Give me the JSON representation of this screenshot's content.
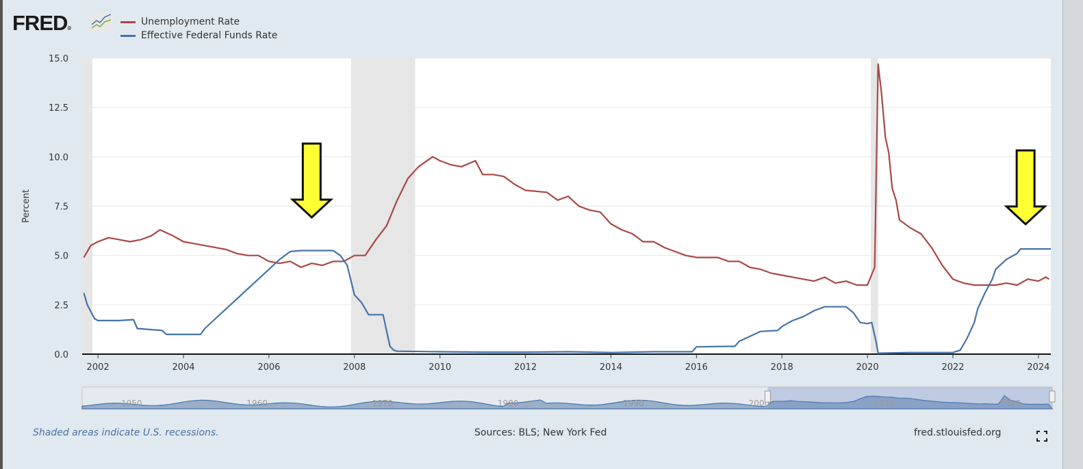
{
  "logo": {
    "text": "FRED"
  },
  "legend": [
    {
      "label": "Unemployment Rate",
      "color": "#aa4643"
    },
    {
      "label": "Effective Federal Funds Rate",
      "color": "#4572a7"
    }
  ],
  "footer": {
    "recession_note": "Shaded areas indicate U.S. recessions.",
    "sources": "Sources: BLS; New York Fed",
    "site": "fred.stlouisfed.org"
  },
  "annotations": [
    {
      "type": "arrow",
      "color": "#ffff33",
      "points_at": "Effective Federal Funds Rate",
      "x": 2007.0
    },
    {
      "type": "arrow",
      "color": "#ffff33",
      "points_at": "Effective Federal Funds Rate",
      "x": 2023.7
    }
  ],
  "chart_data": {
    "type": "line",
    "title": "",
    "xlabel": "",
    "ylabel": "Percent",
    "xlim": [
      2001.63,
      2024.29
    ],
    "ylim": [
      0,
      15
    ],
    "yticks": [
      "0.0",
      "2.5",
      "5.0",
      "7.5",
      "10.0",
      "12.5",
      "15.0"
    ],
    "xticks": [
      "2002",
      "2004",
      "2006",
      "2008",
      "2010",
      "2012",
      "2014",
      "2016",
      "2018",
      "2020",
      "2022",
      "2024"
    ],
    "grid": true,
    "legend_position": "top-left",
    "recessions": [
      [
        2001.63,
        2001.87
      ],
      [
        2007.92,
        2009.42
      ],
      [
        2020.08,
        2020.25
      ]
    ],
    "navigator": {
      "labels": [
        "1950",
        "1960",
        "1970",
        "1980",
        "1990",
        "2000",
        "2010",
        "2020"
      ],
      "selected_range": [
        2001.63,
        2024.29
      ]
    },
    "series": [
      {
        "name": "Unemployment Rate",
        "color": "#aa4643",
        "points": [
          [
            2001.67,
            4.9
          ],
          [
            2001.83,
            5.5
          ],
          [
            2002.0,
            5.7
          ],
          [
            2002.25,
            5.9
          ],
          [
            2002.5,
            5.8
          ],
          [
            2002.75,
            5.7
          ],
          [
            2003.0,
            5.8
          ],
          [
            2003.25,
            6.0
          ],
          [
            2003.45,
            6.3
          ],
          [
            2003.75,
            6.0
          ],
          [
            2004.0,
            5.7
          ],
          [
            2004.25,
            5.6
          ],
          [
            2004.5,
            5.5
          ],
          [
            2004.75,
            5.4
          ],
          [
            2005.0,
            5.3
          ],
          [
            2005.25,
            5.1
          ],
          [
            2005.5,
            5.0
          ],
          [
            2005.75,
            5.0
          ],
          [
            2006.0,
            4.7
          ],
          [
            2006.25,
            4.6
          ],
          [
            2006.5,
            4.7
          ],
          [
            2006.75,
            4.4
          ],
          [
            2007.0,
            4.6
          ],
          [
            2007.25,
            4.5
          ],
          [
            2007.5,
            4.7
          ],
          [
            2007.75,
            4.7
          ],
          [
            2008.0,
            5.0
          ],
          [
            2008.25,
            5.0
          ],
          [
            2008.5,
            5.8
          ],
          [
            2008.75,
            6.5
          ],
          [
            2009.0,
            7.8
          ],
          [
            2009.25,
            8.9
          ],
          [
            2009.5,
            9.5
          ],
          [
            2009.83,
            10.0
          ],
          [
            2010.0,
            9.8
          ],
          [
            2010.25,
            9.6
          ],
          [
            2010.5,
            9.5
          ],
          [
            2010.83,
            9.8
          ],
          [
            2011.0,
            9.1
          ],
          [
            2011.25,
            9.1
          ],
          [
            2011.5,
            9.0
          ],
          [
            2011.75,
            8.6
          ],
          [
            2012.0,
            8.3
          ],
          [
            2012.5,
            8.2
          ],
          [
            2012.75,
            7.8
          ],
          [
            2013.0,
            8.0
          ],
          [
            2013.25,
            7.5
          ],
          [
            2013.5,
            7.3
          ],
          [
            2013.75,
            7.2
          ],
          [
            2014.0,
            6.6
          ],
          [
            2014.25,
            6.3
          ],
          [
            2014.5,
            6.1
          ],
          [
            2014.75,
            5.7
          ],
          [
            2015.0,
            5.7
          ],
          [
            2015.25,
            5.4
          ],
          [
            2015.5,
            5.2
          ],
          [
            2015.75,
            5.0
          ],
          [
            2016.0,
            4.9
          ],
          [
            2016.5,
            4.9
          ],
          [
            2016.75,
            4.7
          ],
          [
            2017.0,
            4.7
          ],
          [
            2017.25,
            4.4
          ],
          [
            2017.5,
            4.3
          ],
          [
            2017.75,
            4.1
          ],
          [
            2018.0,
            4.0
          ],
          [
            2018.5,
            3.8
          ],
          [
            2018.75,
            3.7
          ],
          [
            2019.0,
            3.9
          ],
          [
            2019.25,
            3.6
          ],
          [
            2019.5,
            3.7
          ],
          [
            2019.75,
            3.5
          ],
          [
            2020.0,
            3.5
          ],
          [
            2020.17,
            4.4
          ],
          [
            2020.25,
            14.7
          ],
          [
            2020.33,
            13.2
          ],
          [
            2020.42,
            11.0
          ],
          [
            2020.5,
            10.2
          ],
          [
            2020.58,
            8.4
          ],
          [
            2020.67,
            7.8
          ],
          [
            2020.75,
            6.8
          ],
          [
            2021.0,
            6.4
          ],
          [
            2021.25,
            6.1
          ],
          [
            2021.5,
            5.4
          ],
          [
            2021.75,
            4.5
          ],
          [
            2022.0,
            3.8
          ],
          [
            2022.25,
            3.6
          ],
          [
            2022.5,
            3.5
          ],
          [
            2022.75,
            3.5
          ],
          [
            2023.0,
            3.5
          ],
          [
            2023.25,
            3.6
          ],
          [
            2023.5,
            3.5
          ],
          [
            2023.75,
            3.8
          ],
          [
            2024.0,
            3.7
          ],
          [
            2024.17,
            3.9
          ],
          [
            2024.25,
            3.8
          ]
        ]
      },
      {
        "name": "Effective Federal Funds Rate",
        "color": "#4572a7",
        "points": [
          [
            2001.67,
            3.1
          ],
          [
            2001.75,
            2.5
          ],
          [
            2001.92,
            1.8
          ],
          [
            2002.0,
            1.7
          ],
          [
            2002.5,
            1.7
          ],
          [
            2002.83,
            1.75
          ],
          [
            2002.92,
            1.3
          ],
          [
            2003.5,
            1.2
          ],
          [
            2003.6,
            1.0
          ],
          [
            2004.0,
            1.0
          ],
          [
            2004.4,
            1.0
          ],
          [
            2004.5,
            1.3
          ],
          [
            2004.75,
            1.8
          ],
          [
            2005.0,
            2.3
          ],
          [
            2005.25,
            2.8
          ],
          [
            2005.5,
            3.3
          ],
          [
            2005.75,
            3.8
          ],
          [
            2006.0,
            4.3
          ],
          [
            2006.25,
            4.8
          ],
          [
            2006.5,
            5.2
          ],
          [
            2006.75,
            5.25
          ],
          [
            2007.0,
            5.25
          ],
          [
            2007.5,
            5.25
          ],
          [
            2007.67,
            5.0
          ],
          [
            2007.83,
            4.5
          ],
          [
            2008.0,
            3.0
          ],
          [
            2008.17,
            2.6
          ],
          [
            2008.33,
            2.0
          ],
          [
            2008.5,
            2.0
          ],
          [
            2008.67,
            2.0
          ],
          [
            2008.83,
            0.4
          ],
          [
            2008.92,
            0.2
          ],
          [
            2009.0,
            0.15
          ],
          [
            2010.0,
            0.12
          ],
          [
            2011.0,
            0.1
          ],
          [
            2012.0,
            0.1
          ],
          [
            2013.0,
            0.12
          ],
          [
            2014.0,
            0.08
          ],
          [
            2015.0,
            0.12
          ],
          [
            2015.9,
            0.12
          ],
          [
            2016.0,
            0.37
          ],
          [
            2016.9,
            0.4
          ],
          [
            2017.0,
            0.65
          ],
          [
            2017.25,
            0.9
          ],
          [
            2017.5,
            1.15
          ],
          [
            2017.9,
            1.2
          ],
          [
            2018.0,
            1.4
          ],
          [
            2018.25,
            1.7
          ],
          [
            2018.5,
            1.9
          ],
          [
            2018.75,
            2.2
          ],
          [
            2019.0,
            2.4
          ],
          [
            2019.5,
            2.4
          ],
          [
            2019.67,
            2.1
          ],
          [
            2019.83,
            1.6
          ],
          [
            2020.0,
            1.55
          ],
          [
            2020.1,
            1.6
          ],
          [
            2020.2,
            0.65
          ],
          [
            2020.25,
            0.05
          ],
          [
            2021.0,
            0.08
          ],
          [
            2022.0,
            0.08
          ],
          [
            2022.17,
            0.2
          ],
          [
            2022.33,
            0.8
          ],
          [
            2022.5,
            1.6
          ],
          [
            2022.58,
            2.3
          ],
          [
            2022.75,
            3.1
          ],
          [
            2022.92,
            3.8
          ],
          [
            2023.0,
            4.3
          ],
          [
            2023.25,
            4.8
          ],
          [
            2023.5,
            5.1
          ],
          [
            2023.58,
            5.33
          ],
          [
            2024.29,
            5.33
          ]
        ]
      }
    ]
  }
}
